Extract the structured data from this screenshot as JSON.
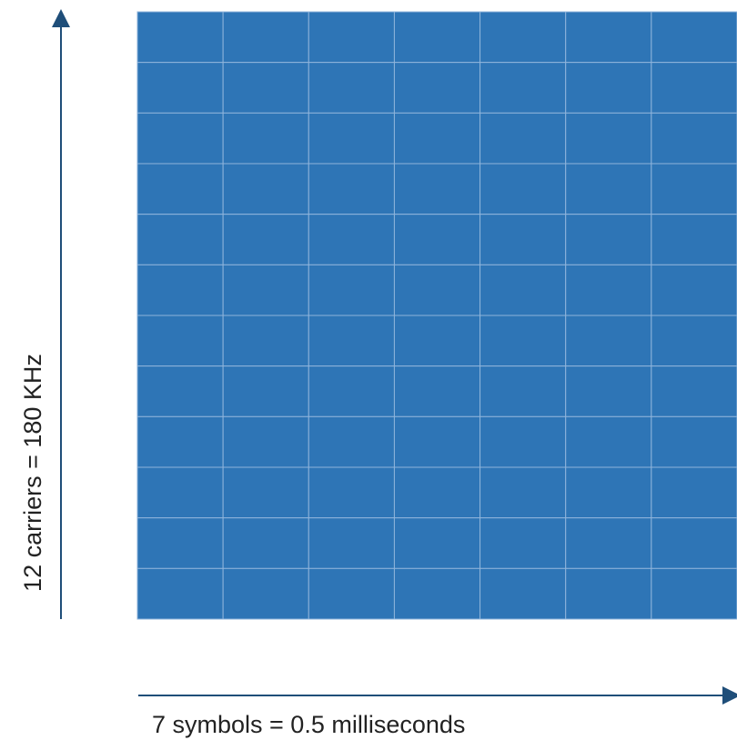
{
  "diagram": {
    "rows": 12,
    "columns": 7,
    "cell_color": "#2e75b6",
    "grid_line_color": "#8fb4db",
    "axis_color": "#1f4e79",
    "vertical_label": "12 carriers = 180 KHz",
    "horizontal_label": "7 symbols = 0.5 milliseconds"
  }
}
